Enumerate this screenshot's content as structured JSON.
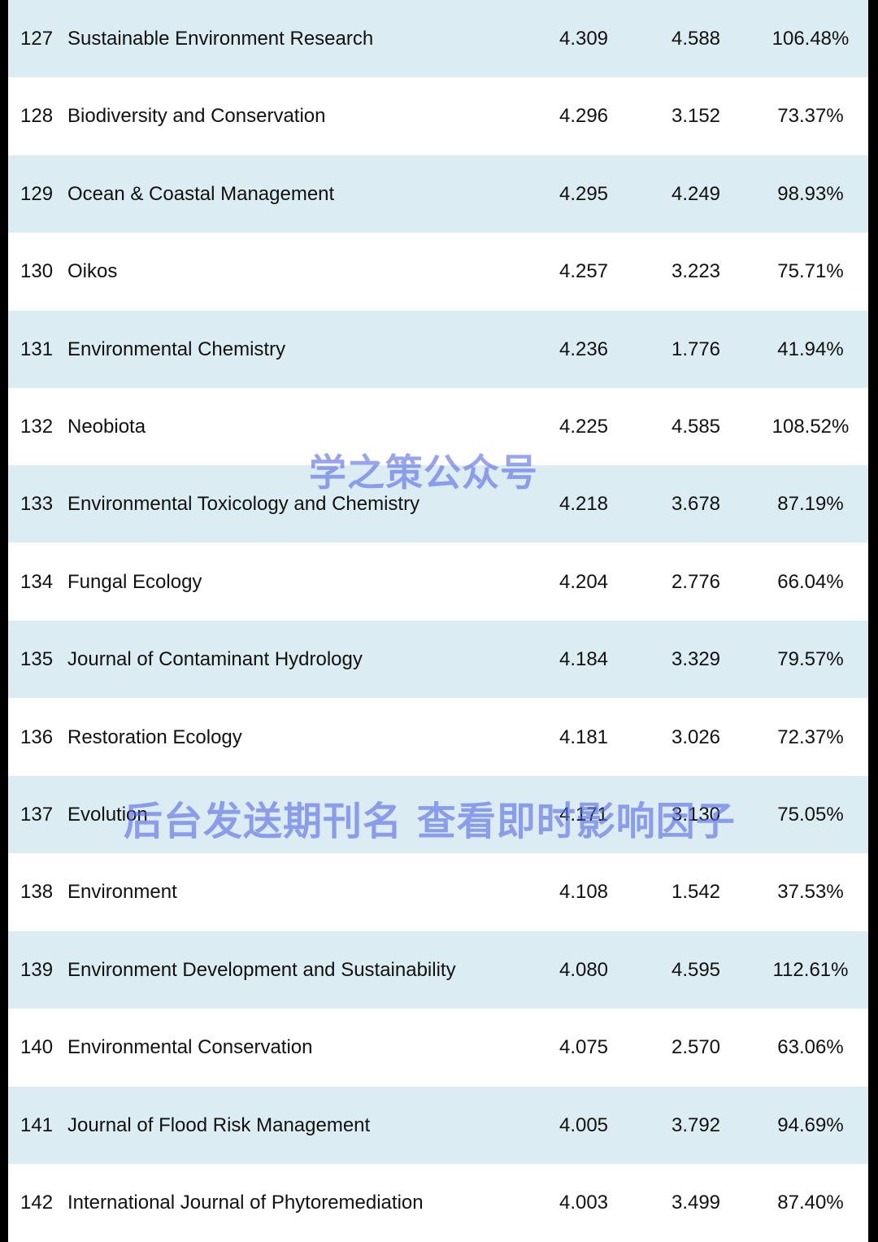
{
  "table": {
    "rows": [
      {
        "rank": "127",
        "name": "Sustainable Environment Research",
        "v1": "4.309",
        "v2": "4.588",
        "v3": "106.48%"
      },
      {
        "rank": "128",
        "name": "Biodiversity and Conservation",
        "v1": "4.296",
        "v2": "3.152",
        "v3": "73.37%"
      },
      {
        "rank": "129",
        "name": "Ocean & Coastal Management",
        "v1": "4.295",
        "v2": "4.249",
        "v3": "98.93%"
      },
      {
        "rank": "130",
        "name": "Oikos",
        "v1": "4.257",
        "v2": "3.223",
        "v3": "75.71%"
      },
      {
        "rank": "131",
        "name": "Environmental Chemistry",
        "v1": "4.236",
        "v2": "1.776",
        "v3": "41.94%"
      },
      {
        "rank": "132",
        "name": "Neobiota",
        "v1": "4.225",
        "v2": "4.585",
        "v3": "108.52%"
      },
      {
        "rank": "133",
        "name": "Environmental Toxicology and Chemistry",
        "v1": "4.218",
        "v2": "3.678",
        "v3": "87.19%"
      },
      {
        "rank": "134",
        "name": "Fungal Ecology",
        "v1": "4.204",
        "v2": "2.776",
        "v3": "66.04%"
      },
      {
        "rank": "135",
        "name": "Journal of Contaminant Hydrology",
        "v1": "4.184",
        "v2": "3.329",
        "v3": "79.57%"
      },
      {
        "rank": "136",
        "name": "Restoration Ecology",
        "v1": "4.181",
        "v2": "3.026",
        "v3": "72.37%"
      },
      {
        "rank": "137",
        "name": "Evolution",
        "v1": "4.171",
        "v2": "3.130",
        "v3": "75.05%"
      },
      {
        "rank": "138",
        "name": "Environment",
        "v1": "4.108",
        "v2": "1.542",
        "v3": "37.53%"
      },
      {
        "rank": "139",
        "name": "Environment Development and Sustainability",
        "v1": "4.080",
        "v2": "4.595",
        "v3": "112.61%"
      },
      {
        "rank": "140",
        "name": "Environmental Conservation",
        "v1": "4.075",
        "v2": "2.570",
        "v3": "63.06%"
      },
      {
        "rank": "141",
        "name": "Journal of Flood Risk Management",
        "v1": "4.005",
        "v2": "3.792",
        "v3": "94.69%"
      },
      {
        "rank": "142",
        "name": "International Journal of Phytoremediation",
        "v1": "4.003",
        "v2": "3.499",
        "v3": "87.40%"
      }
    ]
  },
  "watermarks": {
    "line1": "学之策公众号",
    "line2": "后台发送期刊名 查看即时影响因子"
  },
  "colors": {
    "row_shade": "#dbecf2",
    "row_plain": "#ffffff",
    "watermark": "#5b6ee6"
  }
}
